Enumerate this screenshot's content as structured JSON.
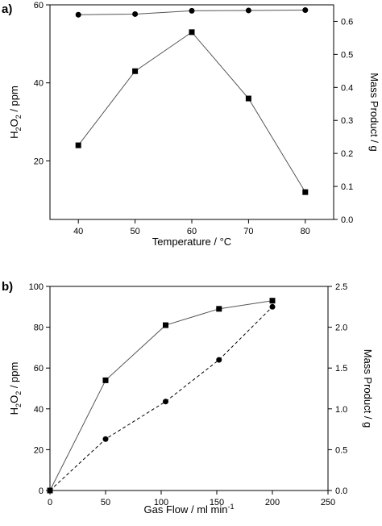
{
  "chart_data": [
    {
      "type": "line",
      "panel_label": "a)",
      "xlabel": "Temperature / °C",
      "ylabel_main": "H",
      "ylabel_sub1": "2",
      "ylabel_mid": "O",
      "ylabel_sub2": "2",
      "ylabel_tail": " / ppm",
      "ylabel2": "Mass Product / g",
      "xlim": [
        35,
        85
      ],
      "ylim": [
        5,
        60
      ],
      "y2lim": [
        0,
        0.65
      ],
      "xticks": [
        40,
        50,
        60,
        70,
        80
      ],
      "yticks": [
        20,
        40,
        60
      ],
      "y2ticks": [
        "0.0",
        "0.1",
        "0.2",
        "0.3",
        "0.4",
        "0.5",
        "0.6"
      ],
      "series": [
        {
          "axis": "left",
          "marker": "square",
          "line": "solid",
          "x": [
            40,
            50,
            60,
            70,
            80
          ],
          "y": [
            24,
            43,
            53,
            36,
            12
          ]
        },
        {
          "axis": "right",
          "marker": "circle",
          "line": "solid",
          "x": [
            40,
            50,
            60,
            70,
            80
          ],
          "y": [
            0.62,
            0.622,
            0.632,
            0.633,
            0.634
          ]
        }
      ]
    },
    {
      "type": "line",
      "panel_label": "b)",
      "xlabel_main": "Gas Flow / ml min",
      "xlabel_sup": "-1",
      "ylabel_main": "H",
      "ylabel_sub1": "2",
      "ylabel_mid": "O",
      "ylabel_sub2": "2",
      "ylabel_tail": " / ppm",
      "ylabel2": "Mass Product / g",
      "xlim": [
        0,
        250
      ],
      "ylim": [
        0,
        100
      ],
      "y2lim": [
        0,
        2.5
      ],
      "xticks": [
        0,
        50,
        100,
        150,
        200,
        250
      ],
      "yticks": [
        0,
        20,
        40,
        60,
        80,
        100
      ],
      "y2ticks": [
        "0.0",
        "0.5",
        "1.0",
        "1.5",
        "2.0",
        "2.5"
      ],
      "series": [
        {
          "axis": "left",
          "marker": "square",
          "line": "solid",
          "x": [
            0,
            50,
            104,
            152,
            200
          ],
          "y": [
            0,
            54,
            81,
            89,
            93
          ]
        },
        {
          "axis": "right",
          "marker": "circle",
          "line": "dashed",
          "x": [
            0,
            50,
            104,
            152,
            200
          ],
          "y": [
            0,
            0.63,
            1.09,
            1.6,
            2.25
          ]
        }
      ]
    }
  ]
}
